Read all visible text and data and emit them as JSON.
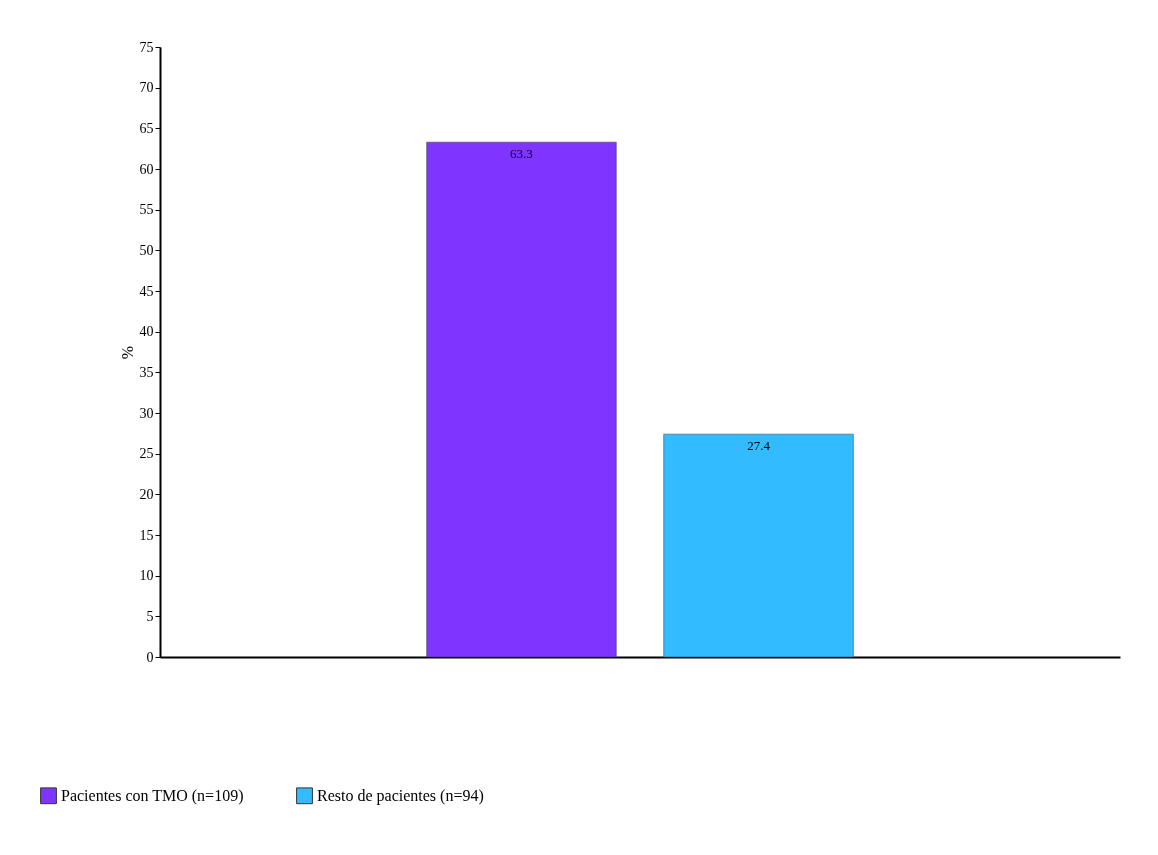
{
  "chart_data": {
    "type": "bar",
    "ylabel": "%",
    "categories": [
      null
    ],
    "series": [
      {
        "name": "Pacientes con TMO (n=109)",
        "color": "#7f35ff",
        "values": [
          63.3
        ]
      },
      {
        "name": "Resto de pacientes (n=94)",
        "color": "#33bbff",
        "values": [
          27.4
        ]
      }
    ],
    "ylim": [
      0,
      75
    ],
    "yticks": [
      0,
      5,
      10,
      15,
      20,
      25,
      30,
      35,
      40,
      45,
      50,
      55,
      60,
      65,
      70,
      75
    ],
    "data_labels": true,
    "legend": "bottom left",
    "grid": false
  }
}
